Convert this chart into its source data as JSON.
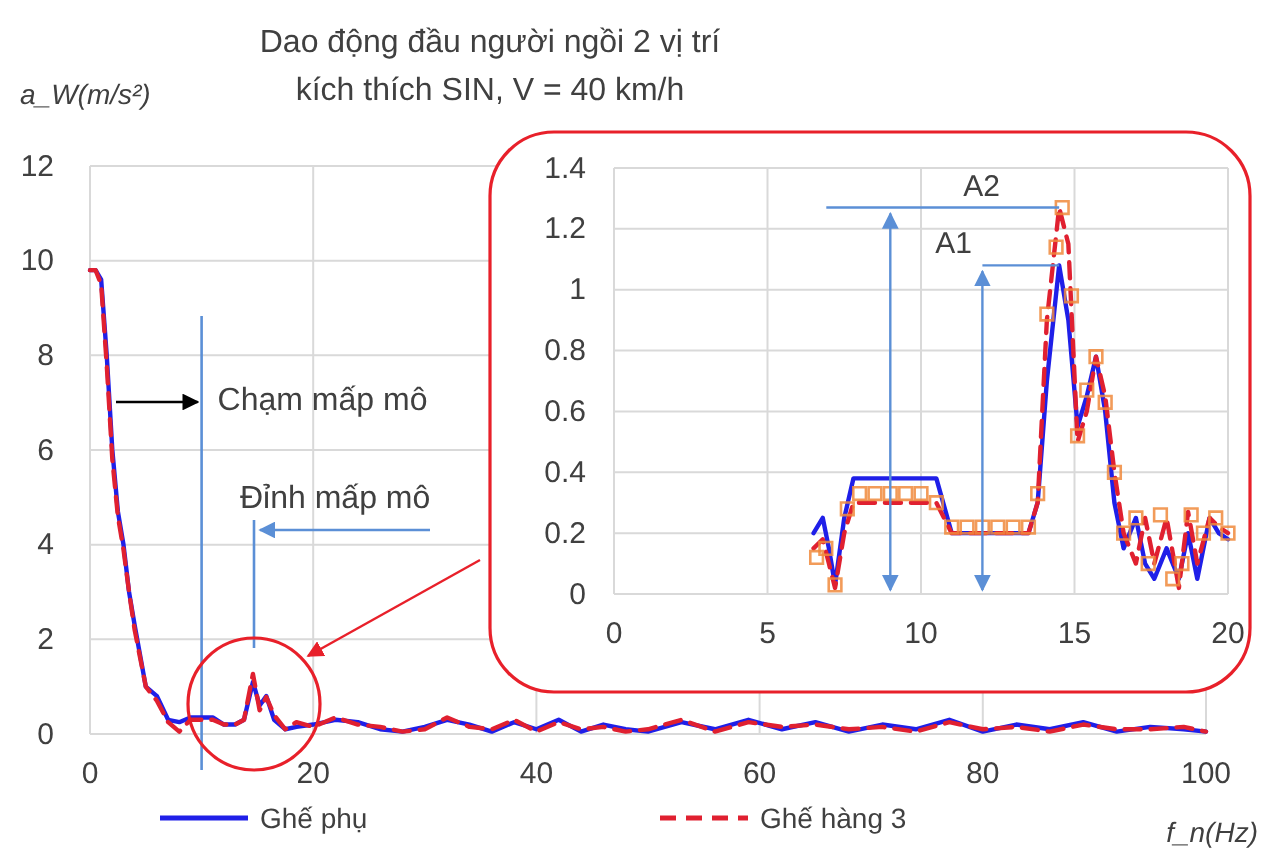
{
  "chart_data": [
    {
      "type": "line",
      "title": "Dao động đầu người ngồi 2 vị trí",
      "subtitle": "kích thích SIN, V = 40 km/h",
      "xlabel": "f_n(Hz)",
      "ylabel": "a_W(m/s²)",
      "x": [
        0,
        0.5,
        1,
        1.5,
        2,
        2.5,
        3,
        3.5,
        4,
        5,
        6,
        7,
        8,
        9,
        10,
        11,
        12,
        13,
        13.8,
        14.6,
        15.2,
        15.8,
        16.5,
        17.5,
        18.5,
        20,
        22,
        24,
        26,
        28,
        30,
        32,
        34,
        36,
        38,
        40,
        42,
        44,
        46,
        48,
        50,
        53,
        56,
        59,
        62,
        65,
        68,
        71,
        74,
        77,
        80,
        83,
        86,
        89,
        92,
        95,
        98,
        100
      ],
      "series": [
        {
          "name": "Ghế phụ",
          "color": "#1f1fe8",
          "line_style": "solid",
          "values": [
            9.8,
            9.8,
            9.6,
            8,
            6,
            4.7,
            4,
            3,
            2.3,
            1,
            0.8,
            0.3,
            0.25,
            0.35,
            0.35,
            0.35,
            0.2,
            0.2,
            0.3,
            1.1,
            0.6,
            0.8,
            0.3,
            0.1,
            0.15,
            0.2,
            0.3,
            0.25,
            0.1,
            0.05,
            0.15,
            0.3,
            0.2,
            0.05,
            0.25,
            0.1,
            0.3,
            0.05,
            0.2,
            0.1,
            0.05,
            0.25,
            0.1,
            0.3,
            0.1,
            0.25,
            0.05,
            0.2,
            0.1,
            0.3,
            0.05,
            0.2,
            0.1,
            0.25,
            0.05,
            0.15,
            0.1,
            0.05
          ]
        },
        {
          "name": "Ghế hàng 3",
          "color": "#e02030",
          "line_style": "dashed",
          "values": [
            9.8,
            9.8,
            9.5,
            7.8,
            5.8,
            4.6,
            3.9,
            3,
            2.2,
            1,
            0.7,
            0.25,
            0.05,
            0.3,
            0.3,
            0.3,
            0.2,
            0.2,
            0.3,
            1.27,
            0.5,
            0.78,
            0.4,
            0.1,
            0.25,
            0.15,
            0.35,
            0.2,
            0.15,
            0.05,
            0.1,
            0.35,
            0.15,
            0.1,
            0.3,
            0.05,
            0.25,
            0.1,
            0.15,
            0.05,
            0.1,
            0.3,
            0.05,
            0.25,
            0.15,
            0.2,
            0.1,
            0.15,
            0.05,
            0.25,
            0.1,
            0.15,
            0.05,
            0.2,
            0.1,
            0.1,
            0.15,
            0.05
          ]
        }
      ],
      "xlim": [
        0,
        100
      ],
      "xticks": [
        0,
        20,
        40,
        60,
        80,
        100
      ],
      "ylim": [
        0,
        12
      ],
      "yticks": [
        0,
        2,
        4,
        6,
        8,
        10,
        12
      ],
      "grid": true,
      "legend": "bottom",
      "marker": "none",
      "ref_lines": [
        {
          "axis": "x",
          "value": 10,
          "label": "Chạm mấp mô"
        }
      ],
      "annotations": [
        "Đỉnh mấp mô"
      ]
    },
    {
      "type": "line",
      "x": [
        6.5,
        6.8,
        7,
        7.2,
        7.5,
        7.8,
        10.5,
        11,
        13.5,
        13.8,
        14.1,
        14.5,
        14.8,
        15.1,
        15.4,
        15.7,
        16,
        16.3,
        16.6,
        17,
        17.3,
        17.6,
        18,
        18.4,
        18.7,
        19,
        19.4,
        19.7,
        20
      ],
      "series": [
        {
          "color": "#1f1fe8",
          "line_style": "solid",
          "values": [
            0.2,
            0.25,
            0.15,
            0.03,
            0.25,
            0.38,
            0.38,
            0.2,
            0.2,
            0.3,
            0.7,
            1.08,
            0.9,
            0.55,
            0.65,
            0.78,
            0.6,
            0.3,
            0.15,
            0.25,
            0.1,
            0.05,
            0.15,
            0.05,
            0.2,
            0.05,
            0.25,
            0.2,
            0.18
          ]
        },
        {
          "color": "#e02030",
          "line_style": "dashed",
          "values": [
            0.15,
            0.18,
            0.1,
            0.02,
            0.2,
            0.3,
            0.3,
            0.2,
            0.2,
            0.3,
            0.9,
            1.27,
            1.15,
            0.5,
            0.6,
            0.78,
            0.65,
            0.4,
            0.2,
            0.1,
            0.25,
            0.1,
            0.25,
            0.02,
            0.27,
            0.1,
            0.25,
            0.22,
            0.2
          ]
        },
        {
          "type": "scatter",
          "marker": "square",
          "color": "#f08a3c",
          "x": [
            6.6,
            6.9,
            7.2,
            7.6,
            8,
            8.5,
            9,
            9.5,
            10,
            10.5,
            11,
            11.5,
            12,
            12.5,
            13,
            13.5,
            13.8,
            14.1,
            14.4,
            14.6,
            14.9,
            15.1,
            15.4,
            15.7,
            16,
            16.3,
            16.6,
            17,
            17.4,
            17.8,
            18.2,
            18.5,
            18.8,
            19.2,
            19.6,
            20
          ],
          "values": [
            0.12,
            0.15,
            0.03,
            0.28,
            0.33,
            0.33,
            0.33,
            0.33,
            0.33,
            0.3,
            0.22,
            0.22,
            0.22,
            0.22,
            0.22,
            0.22,
            0.33,
            0.92,
            1.14,
            1.27,
            0.98,
            0.52,
            0.67,
            0.78,
            0.63,
            0.4,
            0.2,
            0.25,
            0.1,
            0.26,
            0.05,
            0.1,
            0.26,
            0.2,
            0.25,
            0.2
          ]
        }
      ],
      "xlim": [
        0,
        20
      ],
      "xticks": [
        0,
        5,
        10,
        15,
        20
      ],
      "ylim": [
        0,
        1.4
      ],
      "yticks": [
        0,
        0.2,
        0.4,
        0.6,
        0.8,
        1,
        1.2,
        1.4
      ],
      "grid": true,
      "marker": "none",
      "annotations": [
        {
          "text": "A2",
          "x": 14.5,
          "y": 1.27
        },
        {
          "text": "A1",
          "x": 14.5,
          "y": 1.08
        }
      ]
    }
  ]
}
